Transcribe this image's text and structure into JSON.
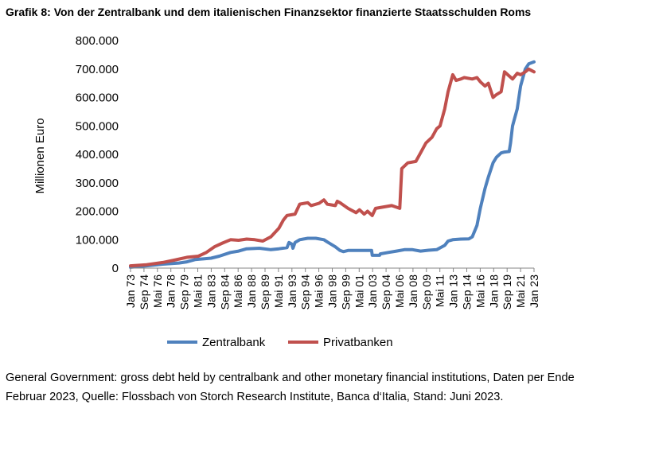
{
  "title": "Grafik 8: Von der Zentralbank und dem italienischen Finanzsektor finanzierte Staatsschulden Roms",
  "note": {
    "line1": "General Government: gross debt held by centralbank and other monetary financial institutions, Daten per Ende",
    "line2": "Februar 2023, Quelle: Flossbach von Storch Research Institute, Banca d‘Italia, Stand: Juni 2023."
  },
  "chart_data": {
    "type": "line",
    "title": "",
    "xlabel": "",
    "ylabel": "Millionen Euro",
    "ylim": [
      0,
      800000
    ],
    "yticks": [
      0,
      100000,
      200000,
      300000,
      400000,
      500000,
      600000,
      700000,
      800000
    ],
    "ytick_labels": [
      "0",
      "100.000",
      "200.000",
      "300.000",
      "400.000",
      "500.000",
      "600.000",
      "700.000",
      "800.000"
    ],
    "xlim": [
      "1973-01",
      "2023-02"
    ],
    "xtick_labels": [
      "Jan 73",
      "Sep 74",
      "Mai 76",
      "Jan 78",
      "Sep 79",
      "Mai 81",
      "Jan 83",
      "Sep 84",
      "Mai 86",
      "Jan 88",
      "Sep 89",
      "Mai 91",
      "Jan 93",
      "Sep 94",
      "Mai 96",
      "Jan 98",
      "Sep 99",
      "Mai 01",
      "Jan 03",
      "Sep 04",
      "Mai 06",
      "Jan 08",
      "Sep 09",
      "Mai 11",
      "Jan 13",
      "Sep 14",
      "Mai 16",
      "Jan 18",
      "Sep 19",
      "Mai 21",
      "Jan 23"
    ],
    "grid": false,
    "legend": "bottom",
    "series": [
      {
        "name": "Zentralbank",
        "color": "#4f81bd",
        "points": [
          [
            "1973-01",
            3000
          ],
          [
            "1975-01",
            8000
          ],
          [
            "1977-01",
            14000
          ],
          [
            "1979-01",
            18000
          ],
          [
            "1980-01",
            22000
          ],
          [
            "1981-01",
            30000
          ],
          [
            "1983-01",
            35000
          ],
          [
            "1984-01",
            42000
          ],
          [
            "1985-06",
            55000
          ],
          [
            "1986-06",
            60000
          ],
          [
            "1987-06",
            68000
          ],
          [
            "1989-01",
            70000
          ],
          [
            "1990-06",
            65000
          ],
          [
            "1991-06",
            68000
          ],
          [
            "1992-06",
            72000
          ],
          [
            "1992-09",
            90000
          ],
          [
            "1993-01",
            85000
          ],
          [
            "1993-03",
            70000
          ],
          [
            "1993-06",
            90000
          ],
          [
            "1994-01",
            100000
          ],
          [
            "1995-01",
            105000
          ],
          [
            "1996-01",
            105000
          ],
          [
            "1997-01",
            100000
          ],
          [
            "1997-06",
            92000
          ],
          [
            "1998-06",
            75000
          ],
          [
            "1999-01",
            62000
          ],
          [
            "1999-06",
            58000
          ],
          [
            "2000-01",
            62000
          ],
          [
            "2001-01",
            62000
          ],
          [
            "2002-01",
            62000
          ],
          [
            "2002-12",
            62000
          ],
          [
            "2003-01",
            45000
          ],
          [
            "2003-12",
            45000
          ],
          [
            "2004-01",
            50000
          ],
          [
            "2005-01",
            55000
          ],
          [
            "2006-01",
            60000
          ],
          [
            "2007-01",
            65000
          ],
          [
            "2008-01",
            65000
          ],
          [
            "2009-01",
            60000
          ],
          [
            "2010-01",
            63000
          ],
          [
            "2011-01",
            65000
          ],
          [
            "2012-01",
            80000
          ],
          [
            "2012-06",
            95000
          ],
          [
            "2013-01",
            100000
          ],
          [
            "2014-01",
            102000
          ],
          [
            "2015-01",
            103000
          ],
          [
            "2015-06",
            110000
          ],
          [
            "2016-01",
            150000
          ],
          [
            "2016-06",
            210000
          ],
          [
            "2017-01",
            280000
          ],
          [
            "2017-06",
            320000
          ],
          [
            "2018-01",
            370000
          ],
          [
            "2018-06",
            390000
          ],
          [
            "2019-01",
            405000
          ],
          [
            "2019-06",
            408000
          ],
          [
            "2020-01",
            410000
          ],
          [
            "2020-03",
            440000
          ],
          [
            "2020-06",
            500000
          ],
          [
            "2021-01",
            560000
          ],
          [
            "2021-06",
            640000
          ],
          [
            "2022-01",
            700000
          ],
          [
            "2022-06",
            718000
          ],
          [
            "2023-02",
            725000
          ]
        ]
      },
      {
        "name": "Privatbanken",
        "color": "#c0504d",
        "points": [
          [
            "1973-01",
            8000
          ],
          [
            "1975-01",
            12000
          ],
          [
            "1977-01",
            20000
          ],
          [
            "1978-06",
            28000
          ],
          [
            "1980-01",
            38000
          ],
          [
            "1981-06",
            42000
          ],
          [
            "1982-06",
            55000
          ],
          [
            "1983-06",
            75000
          ],
          [
            "1984-06",
            88000
          ],
          [
            "1985-06",
            100000
          ],
          [
            "1986-06",
            98000
          ],
          [
            "1987-06",
            102000
          ],
          [
            "1988-06",
            100000
          ],
          [
            "1989-06",
            95000
          ],
          [
            "1990-06",
            110000
          ],
          [
            "1991-06",
            140000
          ],
          [
            "1992-01",
            170000
          ],
          [
            "1992-06",
            185000
          ],
          [
            "1993-06",
            190000
          ],
          [
            "1994-01",
            225000
          ],
          [
            "1995-01",
            230000
          ],
          [
            "1995-06",
            220000
          ],
          [
            "1996-06",
            228000
          ],
          [
            "1997-01",
            240000
          ],
          [
            "1997-06",
            225000
          ],
          [
            "1998-06",
            220000
          ],
          [
            "1998-09",
            235000
          ],
          [
            "1999-01",
            230000
          ],
          [
            "2000-01",
            210000
          ],
          [
            "2001-01",
            195000
          ],
          [
            "2001-06",
            205000
          ],
          [
            "2002-01",
            190000
          ],
          [
            "2002-06",
            200000
          ],
          [
            "2003-01",
            185000
          ],
          [
            "2003-06",
            210000
          ],
          [
            "2004-06",
            215000
          ],
          [
            "2005-06",
            220000
          ],
          [
            "2006-06",
            210000
          ],
          [
            "2006-09",
            350000
          ],
          [
            "2007-06",
            370000
          ],
          [
            "2008-06",
            375000
          ],
          [
            "2009-01",
            405000
          ],
          [
            "2009-09",
            440000
          ],
          [
            "2010-06",
            460000
          ],
          [
            "2011-01",
            490000
          ],
          [
            "2011-06",
            500000
          ],
          [
            "2012-01",
            560000
          ],
          [
            "2012-06",
            620000
          ],
          [
            "2013-01",
            680000
          ],
          [
            "2013-06",
            660000
          ],
          [
            "2014-01",
            665000
          ],
          [
            "2014-06",
            670000
          ],
          [
            "2015-06",
            665000
          ],
          [
            "2016-01",
            670000
          ],
          [
            "2016-06",
            655000
          ],
          [
            "2017-01",
            640000
          ],
          [
            "2017-06",
            650000
          ],
          [
            "2018-01",
            600000
          ],
          [
            "2018-06",
            610000
          ],
          [
            "2019-01",
            620000
          ],
          [
            "2019-06",
            690000
          ],
          [
            "2020-06",
            665000
          ],
          [
            "2021-01",
            685000
          ],
          [
            "2021-06",
            680000
          ],
          [
            "2022-01",
            690000
          ],
          [
            "2022-06",
            700000
          ],
          [
            "2023-02",
            690000
          ]
        ]
      }
    ]
  }
}
